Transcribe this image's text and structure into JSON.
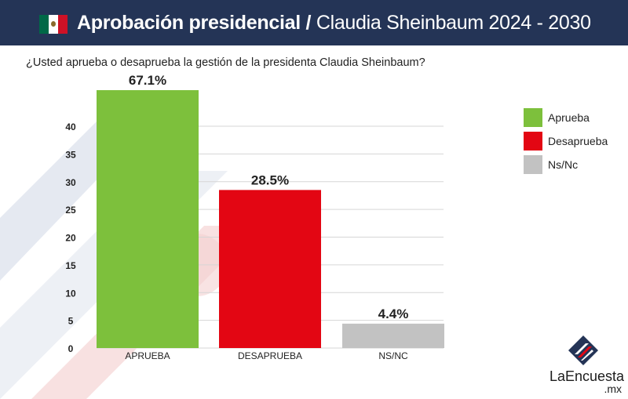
{
  "header": {
    "title_bold": "Aprobación presidencial",
    "separator": "/",
    "title_rest": "Claudia Sheinbaum 2024 - 2030"
  },
  "question": "¿Usted aprueba o desaprueba la gestión de la presidenta Claudia Sheinbaum?",
  "chart_data": {
    "type": "bar",
    "categories": [
      "APRUEBA",
      "DESAPRUEBA",
      "NS/NC"
    ],
    "values": [
      67.1,
      28.5,
      4.4
    ],
    "data_labels": [
      "67.1%",
      "28.5%",
      "4.4%"
    ],
    "colors": [
      "#7dc03c",
      "#e30613",
      "#c2c2c2"
    ],
    "yticks": [
      "0",
      "5",
      "10",
      "15",
      "20",
      "25",
      "30",
      "35",
      "40"
    ],
    "ylim": [
      0,
      40
    ],
    "grid": true,
    "legend_position": "right",
    "legend": [
      "Aprueba",
      "Desaprueba",
      "Ns/Nc"
    ]
  },
  "logo": {
    "name": "LaEncuesta",
    "suffix": ".mx"
  }
}
